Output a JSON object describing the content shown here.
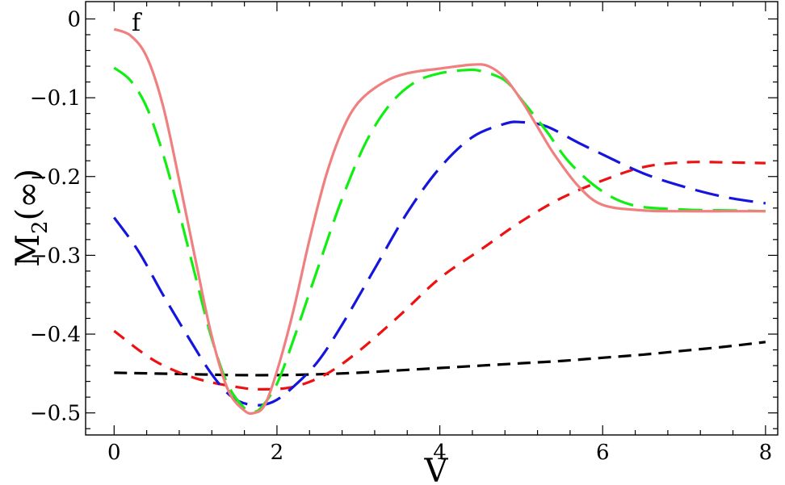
{
  "chart_data": {
    "type": "line",
    "panel_label": "f",
    "xlabel": "V",
    "ylabel": {
      "main": "M",
      "sub": "2",
      "suffix": "(∞)"
    },
    "xlim": [
      -0.35,
      8.15
    ],
    "ylim": [
      -0.528,
      0.022
    ],
    "x_ticks": [
      0,
      2,
      4,
      6,
      8
    ],
    "x_tick_labels": [
      "0",
      "2",
      "4",
      "6",
      "8"
    ],
    "y_ticks": [
      0,
      -0.1,
      -0.2,
      -0.3,
      -0.4,
      -0.5
    ],
    "y_tick_labels": [
      "0",
      "−0.1",
      "−0.2",
      "−0.3",
      "−0.4",
      "−0.5"
    ],
    "grid": false,
    "series": [
      {
        "color": "#000000",
        "dash": "16,9",
        "width": 3.2,
        "x": [
          0,
          0.5,
          1,
          1.5,
          2,
          2.5,
          3,
          3.5,
          4,
          4.5,
          5,
          5.5,
          6,
          6.5,
          7,
          7.5,
          8
        ],
        "y": [
          -0.449,
          -0.45,
          -0.451,
          -0.452,
          -0.452,
          -0.451,
          -0.449,
          -0.446,
          -0.443,
          -0.44,
          -0.437,
          -0.434,
          -0.43,
          -0.426,
          -0.421,
          -0.416,
          -0.41
        ]
      },
      {
        "color": "#ee1111",
        "dash": "16,12",
        "width": 3.2,
        "x": [
          0,
          0.5,
          1,
          1.5,
          1.8,
          2.2,
          2.6,
          3,
          3.5,
          4,
          4.5,
          5,
          5.5,
          6,
          6.5,
          7,
          7.5,
          8
        ],
        "y": [
          -0.396,
          -0.434,
          -0.456,
          -0.467,
          -0.47,
          -0.467,
          -0.451,
          -0.422,
          -0.377,
          -0.329,
          -0.293,
          -0.257,
          -0.227,
          -0.205,
          -0.188,
          -0.182,
          -0.182,
          -0.183
        ]
      },
      {
        "color": "#1515dd",
        "dash": "30,13",
        "width": 3.2,
        "x": [
          0,
          0.3,
          0.6,
          0.9,
          1.2,
          1.45,
          1.7,
          1.95,
          2.2,
          2.5,
          2.8,
          3.2,
          3.6,
          4,
          4.4,
          4.8,
          5,
          5.3,
          5.7,
          6,
          6.5,
          7,
          7.5,
          8
        ],
        "y": [
          -0.252,
          -0.295,
          -0.35,
          -0.402,
          -0.451,
          -0.48,
          -0.49,
          -0.486,
          -0.467,
          -0.435,
          -0.388,
          -0.317,
          -0.246,
          -0.189,
          -0.15,
          -0.133,
          -0.131,
          -0.136,
          -0.157,
          -0.172,
          -0.196,
          -0.213,
          -0.226,
          -0.234
        ]
      },
      {
        "color": "#11ee11",
        "dash": "30,13",
        "width": 3.2,
        "x": [
          0,
          0.2,
          0.4,
          0.6,
          0.8,
          1,
          1.2,
          1.4,
          1.6,
          1.7,
          1.8,
          2,
          2.2,
          2.5,
          2.8,
          3.1,
          3.4,
          3.7,
          4,
          4.3,
          4.5,
          4.8,
          5,
          5.3,
          5.6,
          6,
          6.4,
          7,
          7.5,
          8
        ],
        "y": [
          -0.062,
          -0.078,
          -0.112,
          -0.171,
          -0.246,
          -0.327,
          -0.406,
          -0.465,
          -0.494,
          -0.498,
          -0.494,
          -0.463,
          -0.408,
          -0.317,
          -0.228,
          -0.155,
          -0.107,
          -0.08,
          -0.069,
          -0.065,
          -0.066,
          -0.078,
          -0.102,
          -0.141,
          -0.183,
          -0.219,
          -0.237,
          -0.242,
          -0.243,
          -0.244
        ]
      },
      {
        "color": "#f07f7f",
        "dash": "",
        "width": 3.2,
        "x": [
          0,
          0.2,
          0.4,
          0.6,
          0.8,
          1,
          1.2,
          1.4,
          1.6,
          1.72,
          1.85,
          2,
          2.2,
          2.4,
          2.6,
          2.8,
          3,
          3.3,
          3.6,
          4,
          4.4,
          4.6,
          4.8,
          5,
          5.2,
          5.4,
          5.7,
          6,
          6.5,
          7,
          7.5,
          8
        ],
        "y": [
          -0.013,
          -0.021,
          -0.048,
          -0.11,
          -0.205,
          -0.306,
          -0.403,
          -0.471,
          -0.497,
          -0.5,
          -0.49,
          -0.447,
          -0.371,
          -0.28,
          -0.2,
          -0.142,
          -0.106,
          -0.081,
          -0.069,
          -0.063,
          -0.058,
          -0.06,
          -0.075,
          -0.103,
          -0.137,
          -0.171,
          -0.212,
          -0.236,
          -0.243,
          -0.244,
          -0.244,
          -0.244
        ]
      }
    ]
  }
}
